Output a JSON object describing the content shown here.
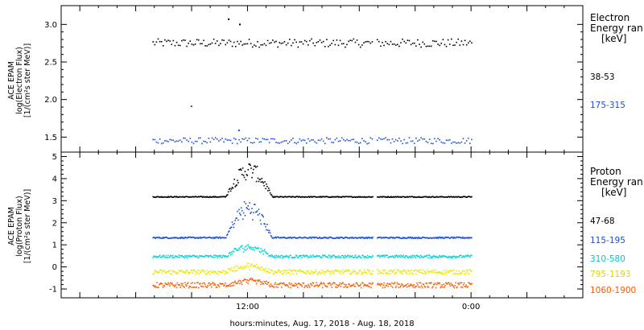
{
  "chart_data": [
    {
      "type": "scatter",
      "panel": "electron",
      "ylabel": [
        "ACE EPAM",
        "log(Electron Flux)",
        "[1/(cm²s ster MeV)]"
      ],
      "ylim": [
        1.3,
        3.25
      ],
      "yticks": [
        "1.5",
        "2.0",
        "2.5",
        "3.0"
      ],
      "ytick_values": [
        1.5,
        2.0,
        2.5,
        3.0
      ],
      "legend_title": [
        "Electron",
        "Energy ran",
        "[keV]"
      ],
      "series": [
        {
          "name": "38-53",
          "color": "#000000",
          "base": 2.76,
          "jitter": 0.055,
          "outliers": [
            {
              "x": 10.95,
              "y": 3.08
            },
            {
              "x": 11.55,
              "y": 3.01
            }
          ]
        },
        {
          "name": "175-315",
          "color": "#1a4fd6",
          "base": 1.46,
          "jitter": 0.04,
          "outliers": [
            {
              "x": 8.95,
              "y": 1.92
            },
            {
              "x": 11.5,
              "y": 1.6
            }
          ]
        }
      ]
    },
    {
      "type": "scatter",
      "panel": "proton",
      "ylabel": [
        "ACE EPAM",
        "log(Proton Flux)",
        "[1/(cm²s ster MeV)]"
      ],
      "ylim": [
        -1.4,
        5.2
      ],
      "yticks": [
        "-1",
        "0",
        "1",
        "2",
        "3",
        "4",
        "5"
      ],
      "ytick_values": [
        -1,
        0,
        1,
        2,
        3,
        4,
        5
      ],
      "legend_title": [
        "Proton",
        "Energy ran",
        "[keV]"
      ],
      "series": [
        {
          "name": "47-68",
          "color": "#000000",
          "base": 3.2,
          "jitter": 0.02,
          "event_peak": 4.6
        },
        {
          "name": "115-195",
          "color": "#1a4fd6",
          "base": 1.35,
          "jitter": 0.03,
          "event_peak": 2.9
        },
        {
          "name": "310-580",
          "color": "#00d5d5",
          "base": 0.5,
          "jitter": 0.06,
          "event_peak": 1.0
        },
        {
          "name": "795-1193",
          "color": "#e8e800",
          "base": -0.2,
          "jitter": 0.1,
          "event_peak": 0.1
        },
        {
          "name": "1060-1900",
          "color": "#ff5a00",
          "base": -0.8,
          "jitter": 0.12,
          "event_peak": -0.6
        }
      ]
    }
  ],
  "x_axis": {
    "label": "hours:minutes, Aug. 17, 2018 - Aug. 18, 2018",
    "range_hours": [
      2,
      30
    ],
    "ticks": [
      {
        "h": 12,
        "label": "12:00"
      },
      {
        "h": 24,
        "label": "0:00"
      }
    ],
    "data_range_hours": [
      6.9,
      24.0
    ],
    "event_hours": [
      10.8,
      13.3
    ],
    "gap_hours": [
      18.7,
      18.9
    ]
  }
}
